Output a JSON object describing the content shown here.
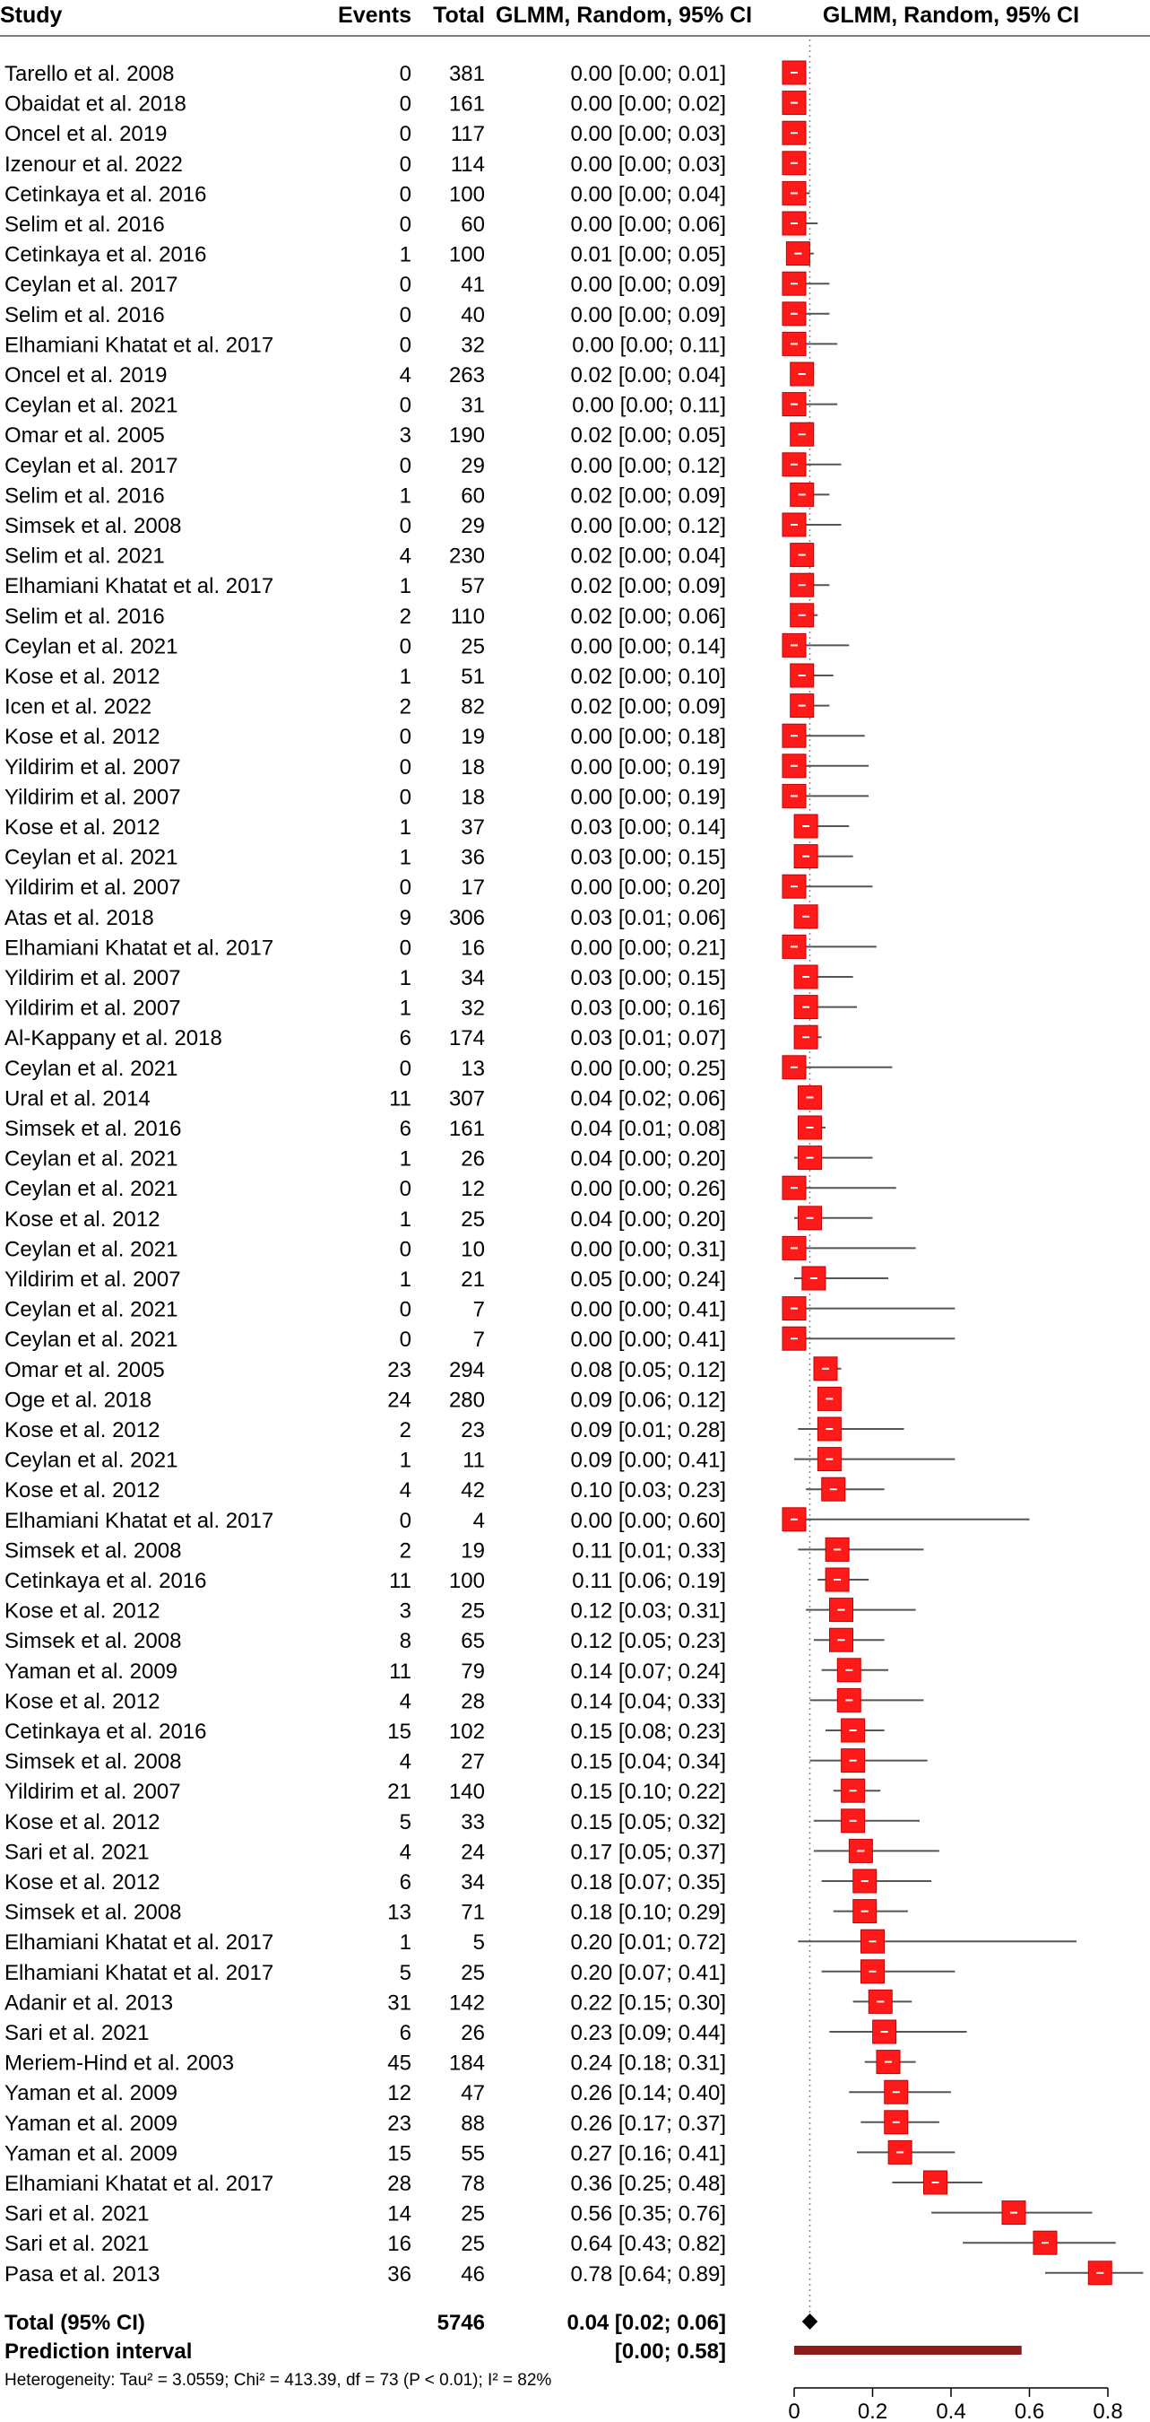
{
  "chart_data": {
    "type": "forest",
    "headers": {
      "study": "Study",
      "events": "Events",
      "total": "Total",
      "effect": "GLMM, Random, 95% CI",
      "plot": "GLMM, Random, 95% CI"
    },
    "xlim": [
      0,
      0.8
    ],
    "x_ticks": [
      0,
      0.2,
      0.4,
      0.6,
      0.8
    ],
    "x_tick_labels": [
      "0",
      "0.2",
      "0.4",
      "0.6",
      "0.8"
    ],
    "reference_line": 0.04,
    "studies": [
      {
        "study": "Tarello et al. 2008",
        "events": "0",
        "total": "381",
        "ci_text": "0.00 [0.00; 0.01]",
        "est": 0.0,
        "lo": 0.0,
        "hi": 0.01
      },
      {
        "study": "Obaidat et al. 2018",
        "events": "0",
        "total": "161",
        "ci_text": "0.00 [0.00; 0.02]",
        "est": 0.0,
        "lo": 0.0,
        "hi": 0.02
      },
      {
        "study": "Oncel et al. 2019",
        "events": "0",
        "total": "117",
        "ci_text": "0.00 [0.00; 0.03]",
        "est": 0.0,
        "lo": 0.0,
        "hi": 0.03
      },
      {
        "study": "Izenour et al. 2022",
        "events": "0",
        "total": "114",
        "ci_text": "0.00 [0.00; 0.03]",
        "est": 0.0,
        "lo": 0.0,
        "hi": 0.03
      },
      {
        "study": "Cetinkaya et al. 2016",
        "events": "0",
        "total": "100",
        "ci_text": "0.00 [0.00; 0.04]",
        "est": 0.0,
        "lo": 0.0,
        "hi": 0.04
      },
      {
        "study": "Selim et al. 2016",
        "events": "0",
        "total": "60",
        "ci_text": "0.00 [0.00; 0.06]",
        "est": 0.0,
        "lo": 0.0,
        "hi": 0.06
      },
      {
        "study": "Cetinkaya et al. 2016",
        "events": "1",
        "total": "100",
        "ci_text": "0.01 [0.00; 0.05]",
        "est": 0.01,
        "lo": 0.0,
        "hi": 0.05
      },
      {
        "study": "Ceylan et al. 2017",
        "events": "0",
        "total": "41",
        "ci_text": "0.00 [0.00; 0.09]",
        "est": 0.0,
        "lo": 0.0,
        "hi": 0.09
      },
      {
        "study": "Selim et al. 2016",
        "events": "0",
        "total": "40",
        "ci_text": "0.00 [0.00; 0.09]",
        "est": 0.0,
        "lo": 0.0,
        "hi": 0.09
      },
      {
        "study": "Elhamiani Khatat et al. 2017",
        "events": "0",
        "total": "32",
        "ci_text": "0.00 [0.00; 0.11]",
        "est": 0.0,
        "lo": 0.0,
        "hi": 0.11
      },
      {
        "study": "Oncel et al. 2019",
        "events": "4",
        "total": "263",
        "ci_text": "0.02 [0.00; 0.04]",
        "est": 0.02,
        "lo": 0.0,
        "hi": 0.04
      },
      {
        "study": "Ceylan et al. 2021",
        "events": "0",
        "total": "31",
        "ci_text": "0.00 [0.00; 0.11]",
        "est": 0.0,
        "lo": 0.0,
        "hi": 0.11
      },
      {
        "study": "Omar et al. 2005",
        "events": "3",
        "total": "190",
        "ci_text": "0.02 [0.00; 0.05]",
        "est": 0.02,
        "lo": 0.0,
        "hi": 0.05
      },
      {
        "study": "Ceylan et al. 2017",
        "events": "0",
        "total": "29",
        "ci_text": "0.00 [0.00; 0.12]",
        "est": 0.0,
        "lo": 0.0,
        "hi": 0.12
      },
      {
        "study": "Selim et al. 2016",
        "events": "1",
        "total": "60",
        "ci_text": "0.02 [0.00; 0.09]",
        "est": 0.02,
        "lo": 0.0,
        "hi": 0.09
      },
      {
        "study": "Simsek et al. 2008",
        "events": "0",
        "total": "29",
        "ci_text": "0.00 [0.00; 0.12]",
        "est": 0.0,
        "lo": 0.0,
        "hi": 0.12
      },
      {
        "study": "Selim et al. 2021",
        "events": "4",
        "total": "230",
        "ci_text": "0.02 [0.00; 0.04]",
        "est": 0.02,
        "lo": 0.0,
        "hi": 0.04
      },
      {
        "study": "Elhamiani Khatat et al. 2017",
        "events": "1",
        "total": "57",
        "ci_text": "0.02 [0.00; 0.09]",
        "est": 0.02,
        "lo": 0.0,
        "hi": 0.09
      },
      {
        "study": "Selim et al. 2016",
        "events": "2",
        "total": "110",
        "ci_text": "0.02 [0.00; 0.06]",
        "est": 0.02,
        "lo": 0.0,
        "hi": 0.06
      },
      {
        "study": "Ceylan et al. 2021",
        "events": "0",
        "total": "25",
        "ci_text": "0.00 [0.00; 0.14]",
        "est": 0.0,
        "lo": 0.0,
        "hi": 0.14
      },
      {
        "study": "Kose et al. 2012",
        "events": "1",
        "total": "51",
        "ci_text": "0.02 [0.00; 0.10]",
        "est": 0.02,
        "lo": 0.0,
        "hi": 0.1
      },
      {
        "study": "Icen et al. 2022",
        "events": "2",
        "total": "82",
        "ci_text": "0.02 [0.00; 0.09]",
        "est": 0.02,
        "lo": 0.0,
        "hi": 0.09
      },
      {
        "study": "Kose et al. 2012",
        "events": "0",
        "total": "19",
        "ci_text": "0.00 [0.00; 0.18]",
        "est": 0.0,
        "lo": 0.0,
        "hi": 0.18
      },
      {
        "study": "Yildirim et al. 2007",
        "events": "0",
        "total": "18",
        "ci_text": "0.00 [0.00; 0.19]",
        "est": 0.0,
        "lo": 0.0,
        "hi": 0.19
      },
      {
        "study": "Yildirim et al. 2007",
        "events": "0",
        "total": "18",
        "ci_text": "0.00 [0.00; 0.19]",
        "est": 0.0,
        "lo": 0.0,
        "hi": 0.19
      },
      {
        "study": "Kose et al. 2012",
        "events": "1",
        "total": "37",
        "ci_text": "0.03 [0.00; 0.14]",
        "est": 0.03,
        "lo": 0.0,
        "hi": 0.14
      },
      {
        "study": "Ceylan et al. 2021",
        "events": "1",
        "total": "36",
        "ci_text": "0.03 [0.00; 0.15]",
        "est": 0.03,
        "lo": 0.0,
        "hi": 0.15
      },
      {
        "study": "Yildirim et al. 2007",
        "events": "0",
        "total": "17",
        "ci_text": "0.00 [0.00; 0.20]",
        "est": 0.0,
        "lo": 0.0,
        "hi": 0.2
      },
      {
        "study": "Atas et al. 2018",
        "events": "9",
        "total": "306",
        "ci_text": "0.03 [0.01; 0.06]",
        "est": 0.03,
        "lo": 0.01,
        "hi": 0.06
      },
      {
        "study": "Elhamiani Khatat et al. 2017",
        "events": "0",
        "total": "16",
        "ci_text": "0.00 [0.00; 0.21]",
        "est": 0.0,
        "lo": 0.0,
        "hi": 0.21
      },
      {
        "study": "Yildirim et al. 2007",
        "events": "1",
        "total": "34",
        "ci_text": "0.03 [0.00; 0.15]",
        "est": 0.03,
        "lo": 0.0,
        "hi": 0.15
      },
      {
        "study": "Yildirim et al. 2007",
        "events": "1",
        "total": "32",
        "ci_text": "0.03 [0.00; 0.16]",
        "est": 0.03,
        "lo": 0.0,
        "hi": 0.16
      },
      {
        "study": "Al-Kappany et al. 2018",
        "events": "6",
        "total": "174",
        "ci_text": "0.03 [0.01; 0.07]",
        "est": 0.03,
        "lo": 0.01,
        "hi": 0.07
      },
      {
        "study": "Ceylan et al. 2021",
        "events": "0",
        "total": "13",
        "ci_text": "0.00 [0.00; 0.25]",
        "est": 0.0,
        "lo": 0.0,
        "hi": 0.25
      },
      {
        "study": "Ural et al. 2014",
        "events": "11",
        "total": "307",
        "ci_text": "0.04 [0.02; 0.06]",
        "est": 0.04,
        "lo": 0.02,
        "hi": 0.06
      },
      {
        "study": "Simsek et al. 2016",
        "events": "6",
        "total": "161",
        "ci_text": "0.04 [0.01; 0.08]",
        "est": 0.04,
        "lo": 0.01,
        "hi": 0.08
      },
      {
        "study": "Ceylan et al. 2021",
        "events": "1",
        "total": "26",
        "ci_text": "0.04 [0.00; 0.20]",
        "est": 0.04,
        "lo": 0.0,
        "hi": 0.2
      },
      {
        "study": "Ceylan et al. 2021",
        "events": "0",
        "total": "12",
        "ci_text": "0.00 [0.00; 0.26]",
        "est": 0.0,
        "lo": 0.0,
        "hi": 0.26
      },
      {
        "study": "Kose et al. 2012",
        "events": "1",
        "total": "25",
        "ci_text": "0.04 [0.00; 0.20]",
        "est": 0.04,
        "lo": 0.0,
        "hi": 0.2
      },
      {
        "study": "Ceylan et al. 2021",
        "events": "0",
        "total": "10",
        "ci_text": "0.00 [0.00; 0.31]",
        "est": 0.0,
        "lo": 0.0,
        "hi": 0.31
      },
      {
        "study": "Yildirim et al. 2007",
        "events": "1",
        "total": "21",
        "ci_text": "0.05 [0.00; 0.24]",
        "est": 0.05,
        "lo": 0.0,
        "hi": 0.24
      },
      {
        "study": "Ceylan et al. 2021",
        "events": "0",
        "total": "7",
        "ci_text": "0.00 [0.00; 0.41]",
        "est": 0.0,
        "lo": 0.0,
        "hi": 0.41
      },
      {
        "study": "Ceylan et al. 2021",
        "events": "0",
        "total": "7",
        "ci_text": "0.00 [0.00; 0.41]",
        "est": 0.0,
        "lo": 0.0,
        "hi": 0.41
      },
      {
        "study": "Omar et al. 2005",
        "events": "23",
        "total": "294",
        "ci_text": "0.08 [0.05; 0.12]",
        "est": 0.08,
        "lo": 0.05,
        "hi": 0.12
      },
      {
        "study": "Oge et al. 2018",
        "events": "24",
        "total": "280",
        "ci_text": "0.09 [0.06; 0.12]",
        "est": 0.09,
        "lo": 0.06,
        "hi": 0.12
      },
      {
        "study": "Kose et al. 2012",
        "events": "2",
        "total": "23",
        "ci_text": "0.09 [0.01; 0.28]",
        "est": 0.09,
        "lo": 0.01,
        "hi": 0.28
      },
      {
        "study": "Ceylan et al. 2021",
        "events": "1",
        "total": "11",
        "ci_text": "0.09 [0.00; 0.41]",
        "est": 0.09,
        "lo": 0.0,
        "hi": 0.41
      },
      {
        "study": "Kose et al. 2012",
        "events": "4",
        "total": "42",
        "ci_text": "0.10 [0.03; 0.23]",
        "est": 0.1,
        "lo": 0.03,
        "hi": 0.23
      },
      {
        "study": "Elhamiani Khatat et al. 2017",
        "events": "0",
        "total": "4",
        "ci_text": "0.00 [0.00; 0.60]",
        "est": 0.0,
        "lo": 0.0,
        "hi": 0.6
      },
      {
        "study": "Simsek et al. 2008",
        "events": "2",
        "total": "19",
        "ci_text": "0.11 [0.01; 0.33]",
        "est": 0.11,
        "lo": 0.01,
        "hi": 0.33
      },
      {
        "study": "Cetinkaya et al. 2016",
        "events": "11",
        "total": "100",
        "ci_text": "0.11 [0.06; 0.19]",
        "est": 0.11,
        "lo": 0.06,
        "hi": 0.19
      },
      {
        "study": "Kose et al. 2012",
        "events": "3",
        "total": "25",
        "ci_text": "0.12 [0.03; 0.31]",
        "est": 0.12,
        "lo": 0.03,
        "hi": 0.31
      },
      {
        "study": "Simsek et al. 2008",
        "events": "8",
        "total": "65",
        "ci_text": "0.12 [0.05; 0.23]",
        "est": 0.12,
        "lo": 0.05,
        "hi": 0.23
      },
      {
        "study": "Yaman et al. 2009",
        "events": "11",
        "total": "79",
        "ci_text": "0.14 [0.07; 0.24]",
        "est": 0.14,
        "lo": 0.07,
        "hi": 0.24
      },
      {
        "study": "Kose et al. 2012",
        "events": "4",
        "total": "28",
        "ci_text": "0.14 [0.04; 0.33]",
        "est": 0.14,
        "lo": 0.04,
        "hi": 0.33
      },
      {
        "study": "Cetinkaya et al. 2016",
        "events": "15",
        "total": "102",
        "ci_text": "0.15 [0.08; 0.23]",
        "est": 0.15,
        "lo": 0.08,
        "hi": 0.23
      },
      {
        "study": "Simsek et al. 2008",
        "events": "4",
        "total": "27",
        "ci_text": "0.15 [0.04; 0.34]",
        "est": 0.15,
        "lo": 0.04,
        "hi": 0.34
      },
      {
        "study": "Yildirim et al. 2007",
        "events": "21",
        "total": "140",
        "ci_text": "0.15 [0.10; 0.22]",
        "est": 0.15,
        "lo": 0.1,
        "hi": 0.22
      },
      {
        "study": "Kose et al. 2012",
        "events": "5",
        "total": "33",
        "ci_text": "0.15 [0.05; 0.32]",
        "est": 0.15,
        "lo": 0.05,
        "hi": 0.32
      },
      {
        "study": "Sari et al. 2021",
        "events": "4",
        "total": "24",
        "ci_text": "0.17 [0.05; 0.37]",
        "est": 0.17,
        "lo": 0.05,
        "hi": 0.37
      },
      {
        "study": "Kose et al. 2012",
        "events": "6",
        "total": "34",
        "ci_text": "0.18 [0.07; 0.35]",
        "est": 0.18,
        "lo": 0.07,
        "hi": 0.35
      },
      {
        "study": "Simsek et al. 2008",
        "events": "13",
        "total": "71",
        "ci_text": "0.18 [0.10; 0.29]",
        "est": 0.18,
        "lo": 0.1,
        "hi": 0.29
      },
      {
        "study": "Elhamiani Khatat et al. 2017",
        "events": "1",
        "total": "5",
        "ci_text": "0.20 [0.01; 0.72]",
        "est": 0.2,
        "lo": 0.01,
        "hi": 0.72
      },
      {
        "study": "Elhamiani Khatat et al. 2017",
        "events": "5",
        "total": "25",
        "ci_text": "0.20 [0.07; 0.41]",
        "est": 0.2,
        "lo": 0.07,
        "hi": 0.41
      },
      {
        "study": "Adanir et al. 2013",
        "events": "31",
        "total": "142",
        "ci_text": "0.22 [0.15; 0.30]",
        "est": 0.22,
        "lo": 0.15,
        "hi": 0.3
      },
      {
        "study": "Sari et al. 2021",
        "events": "6",
        "total": "26",
        "ci_text": "0.23 [0.09; 0.44]",
        "est": 0.23,
        "lo": 0.09,
        "hi": 0.44
      },
      {
        "study": "Meriem-Hind et al. 2003",
        "events": "45",
        "total": "184",
        "ci_text": "0.24 [0.18; 0.31]",
        "est": 0.24,
        "lo": 0.18,
        "hi": 0.31
      },
      {
        "study": "Yaman et al. 2009",
        "events": "12",
        "total": "47",
        "ci_text": "0.26 [0.14; 0.40]",
        "est": 0.26,
        "lo": 0.14,
        "hi": 0.4
      },
      {
        "study": "Yaman et al. 2009",
        "events": "23",
        "total": "88",
        "ci_text": "0.26 [0.17; 0.37]",
        "est": 0.26,
        "lo": 0.17,
        "hi": 0.37
      },
      {
        "study": "Yaman et al. 2009",
        "events": "15",
        "total": "55",
        "ci_text": "0.27 [0.16; 0.41]",
        "est": 0.27,
        "lo": 0.16,
        "hi": 0.41
      },
      {
        "study": "Elhamiani Khatat et al. 2017",
        "events": "28",
        "total": "78",
        "ci_text": "0.36 [0.25; 0.48]",
        "est": 0.36,
        "lo": 0.25,
        "hi": 0.48
      },
      {
        "study": "Sari et al. 2021",
        "events": "14",
        "total": "25",
        "ci_text": "0.56 [0.35; 0.76]",
        "est": 0.56,
        "lo": 0.35,
        "hi": 0.76
      },
      {
        "study": "Sari et al. 2021",
        "events": "16",
        "total": "25",
        "ci_text": "0.64 [0.43; 0.82]",
        "est": 0.64,
        "lo": 0.43,
        "hi": 0.82
      },
      {
        "study": "Pasa et al. 2013",
        "events": "36",
        "total": "46",
        "ci_text": "0.78 [0.64; 0.89]",
        "est": 0.78,
        "lo": 0.64,
        "hi": 0.89
      }
    ],
    "pooled": {
      "label": "Total (95% CI)",
      "total": "5746",
      "ci_text": "0.04 [0.02; 0.06]",
      "est": 0.04,
      "lo": 0.02,
      "hi": 0.06
    },
    "prediction_interval": {
      "label": "Prediction interval",
      "ci_text": "[0.00; 0.58]",
      "lo": 0.0,
      "hi": 0.58
    },
    "heterogeneity": "Heterogeneity: Tau² = 3.0559; Chi² = 413.39, df = 73 (P < 0.01); I² = 82%",
    "colors": {
      "box": "#ff1a1a",
      "box_edge": "#c40000",
      "ci_line": "#555555",
      "pooled": "#000000",
      "prediction": "#8b1a1a",
      "reference": "#8a8a8a"
    }
  }
}
